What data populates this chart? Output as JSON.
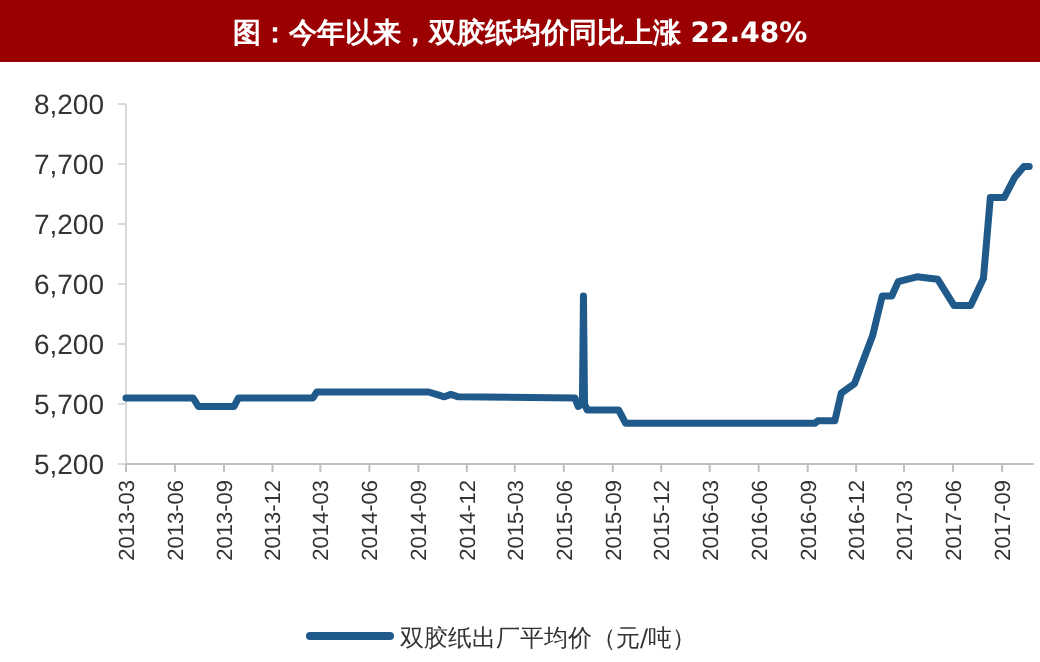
{
  "chart_data": {
    "type": "line",
    "title": "图：今年以来，双胶纸均价同比上涨 22.48%",
    "xlim": [
      "2013-03-01",
      "2017-10-31"
    ],
    "xticks": [
      "2013-03",
      "2013-06",
      "2013-09",
      "2013-12",
      "2014-03",
      "2014-06",
      "2014-09",
      "2014-12",
      "2015-03",
      "2015-06",
      "2015-09",
      "2015-12",
      "2016-03",
      "2016-06",
      "2016-09",
      "2016-12",
      "2017-03",
      "2017-06",
      "2017-09"
    ],
    "ylim": [
      5200,
      8200
    ],
    "yticks": [
      {
        "value": 5200,
        "label": "5,200"
      },
      {
        "value": 5700,
        "label": "5,700"
      },
      {
        "value": 6200,
        "label": "6,200"
      },
      {
        "value": 6700,
        "label": "6,700"
      },
      {
        "value": 7200,
        "label": "7,200"
      },
      {
        "value": 7700,
        "label": "7,700"
      },
      {
        "value": 8200,
        "label": "8,200"
      }
    ],
    "grid": false,
    "legend": "bottom",
    "marker": "none",
    "line_style": "solid",
    "series": [
      {
        "name": "双胶纸出厂平均价（元/吨）",
        "color": "#1f5a8a",
        "x": [
          "2013-03-01",
          "2013-07-05",
          "2013-07-15",
          "2013-09-20",
          "2013-09-28",
          "2014-02-15",
          "2014-02-22",
          "2014-09-20",
          "2014-10-05",
          "2014-10-20",
          "2014-11-01",
          "2014-11-15",
          "2015-06-22",
          "2015-06-28",
          "2015-07-06",
          "2015-07-08",
          "2015-07-10",
          "2015-07-15",
          "2015-09-12",
          "2015-09-25",
          "2016-09-15",
          "2016-09-20",
          "2016-10-22",
          "2016-11-03",
          "2016-11-28",
          "2017-01-01",
          "2017-01-19",
          "2017-02-06",
          "2017-02-18",
          "2017-03-25",
          "2017-05-03",
          "2017-06-03",
          "2017-07-04",
          "2017-07-28",
          "2017-08-10",
          "2017-09-05",
          "2017-09-25",
          "2017-10-12",
          "2017-10-22"
        ],
        "values": [
          5750,
          5750,
          5680,
          5680,
          5750,
          5750,
          5800,
          5800,
          5780,
          5760,
          5780,
          5760,
          5750,
          5680,
          5700,
          6600,
          5700,
          5650,
          5650,
          5540,
          5540,
          5560,
          5560,
          5790,
          5870,
          6270,
          6600,
          6600,
          6720,
          6760,
          6740,
          6520,
          6520,
          6745,
          7420,
          7420,
          7590,
          7680,
          7680
        ]
      }
    ]
  }
}
